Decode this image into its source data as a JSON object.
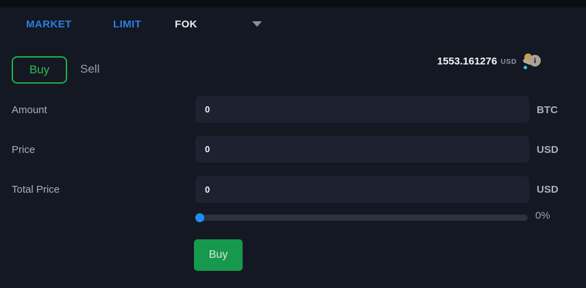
{
  "order_type_tabs": {
    "items": [
      {
        "label": "MARKET",
        "active": false
      },
      {
        "label": "LIMIT",
        "active": false
      },
      {
        "label": "FOK",
        "active": true
      }
    ],
    "dropdown_icon": "caret-down"
  },
  "side_toggle": {
    "buy_label": "Buy",
    "sell_label": "Sell",
    "selected": "Buy"
  },
  "balance": {
    "amount": "1553.161276",
    "currency": "USD",
    "icon": "funds-info-icon"
  },
  "fields": {
    "amount": {
      "label": "Amount",
      "value": "0",
      "unit": "BTC"
    },
    "price": {
      "label": "Price",
      "value": "0",
      "unit": "USD"
    },
    "total": {
      "label": "Total Price",
      "value": "0",
      "unit": "USD"
    }
  },
  "slider": {
    "percent_label": "0%",
    "value_percent": 0
  },
  "submit": {
    "label": "Buy"
  },
  "colors": {
    "background": "#141823",
    "input_background": "#1d2230",
    "tab_blue": "#2d7de9",
    "buy_green_outline": "#21ad4b",
    "buy_green_fill": "#17994d",
    "slider_thumb_blue": "#1f8fff",
    "text_gray": "#9aa1ad",
    "text_white": "#f2f4f7"
  }
}
